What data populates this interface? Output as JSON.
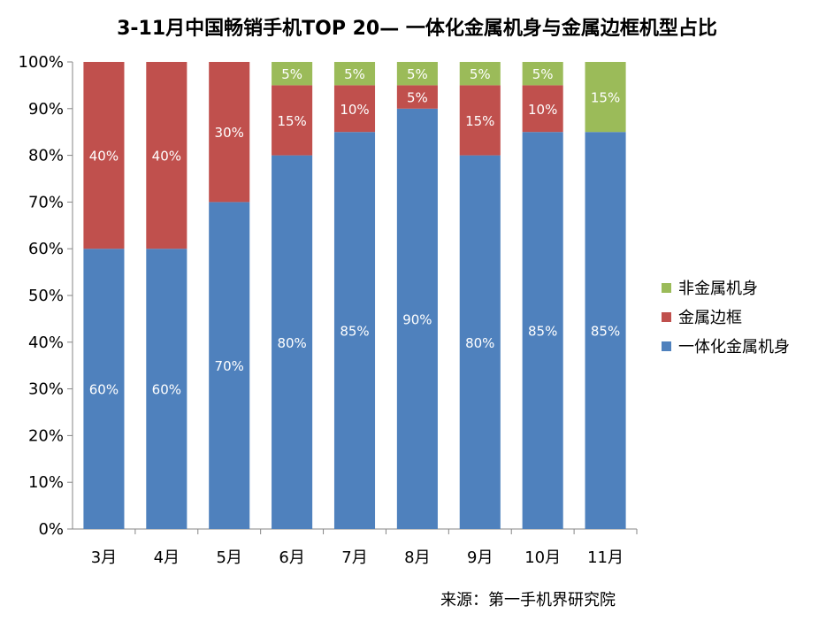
{
  "title": "3-11月中国畅销手机TOP 20— 一体化金属机身与金属边框机型占比",
  "source": "来源：第一手机界研究院",
  "chart_data": {
    "type": "bar",
    "stacked": true,
    "title": "3-11月中国畅销手机TOP 20— 一体化金属机身与金属边框机型占比",
    "categories": [
      "3月",
      "4月",
      "5月",
      "6月",
      "7月",
      "8月",
      "9月",
      "10月",
      "11月"
    ],
    "series": [
      {
        "name": "一体化金属机身",
        "color": "#4F81BD",
        "values": [
          60,
          60,
          70,
          80,
          85,
          90,
          80,
          85,
          85
        ]
      },
      {
        "name": "金属边框",
        "color": "#C0504D",
        "values": [
          40,
          40,
          30,
          15,
          10,
          5,
          15,
          10,
          0
        ]
      },
      {
        "name": "非金属机身",
        "color": "#9BBB59",
        "values": [
          0,
          0,
          0,
          5,
          5,
          5,
          5,
          5,
          15
        ]
      }
    ],
    "ylim": [
      0,
      100
    ],
    "yticks": [
      "0%",
      "10%",
      "20%",
      "30%",
      "40%",
      "50%",
      "60%",
      "70%",
      "80%",
      "90%",
      "100%"
    ],
    "value_suffix": "%",
    "legend": [
      "非金属机身",
      "金属边框",
      "一体化金属机身"
    ],
    "legend_position": "right",
    "grid": false
  }
}
